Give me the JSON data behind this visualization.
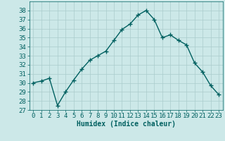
{
  "x": [
    0,
    1,
    2,
    3,
    4,
    5,
    6,
    7,
    8,
    9,
    10,
    11,
    12,
    13,
    14,
    15,
    16,
    17,
    18,
    19,
    20,
    21,
    22,
    23
  ],
  "y": [
    30.0,
    30.2,
    30.5,
    27.5,
    29.0,
    30.3,
    31.5,
    32.5,
    33.0,
    33.5,
    34.7,
    35.9,
    36.5,
    37.5,
    38.0,
    37.0,
    35.0,
    35.3,
    34.7,
    34.2,
    32.2,
    31.2,
    29.7,
    28.7
  ],
  "line_color": "#006060",
  "marker": "+",
  "marker_size": 5,
  "bg_color": "#cce8e8",
  "grid_color": "#aacccc",
  "xlabel": "Humidex (Indice chaleur)",
  "ylim": [
    27,
    39
  ],
  "xlim_min": -0.5,
  "xlim_max": 23.5,
  "yticks": [
    27,
    28,
    29,
    30,
    31,
    32,
    33,
    34,
    35,
    36,
    37,
    38
  ],
  "xticks": [
    0,
    1,
    2,
    3,
    4,
    5,
    6,
    7,
    8,
    9,
    10,
    11,
    12,
    13,
    14,
    15,
    16,
    17,
    18,
    19,
    20,
    21,
    22,
    23
  ],
  "xlabel_fontsize": 7,
  "tick_fontsize": 6.5,
  "label_color": "#006060",
  "linewidth": 1.0,
  "markeredgewidth": 1.0
}
